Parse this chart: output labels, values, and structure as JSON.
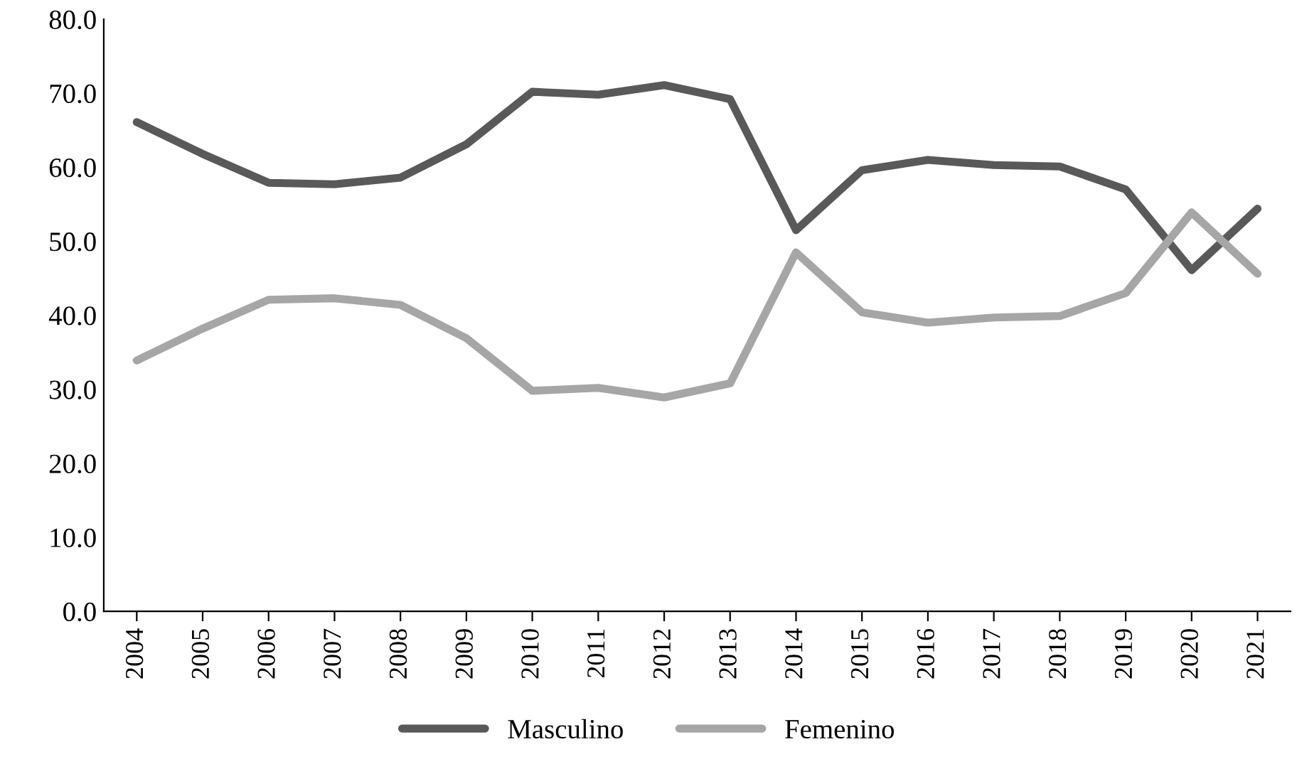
{
  "chart_data": {
    "type": "line",
    "categories": [
      "2004",
      "2005",
      "2006",
      "2007",
      "2008",
      "2009",
      "2010",
      "2011",
      "2012",
      "2013",
      "2014",
      "2015",
      "2016",
      "2017",
      "2018",
      "2019",
      "2020",
      "2021"
    ],
    "series": [
      {
        "name": "Masculino",
        "color": "#595959",
        "values": [
          66.1,
          61.8,
          57.9,
          57.7,
          58.6,
          63.1,
          70.2,
          69.8,
          71.1,
          69.2,
          51.5,
          59.6,
          61.0,
          60.3,
          60.1,
          57.0,
          46.1,
          54.4
        ]
      },
      {
        "name": "Femenino",
        "color": "#a6a6a6",
        "values": [
          33.9,
          38.2,
          42.1,
          42.3,
          41.4,
          36.9,
          29.8,
          30.2,
          28.9,
          30.8,
          48.5,
          40.4,
          39.0,
          39.7,
          39.9,
          43.0,
          53.9,
          45.6
        ]
      }
    ],
    "ylim": [
      0,
      80
    ],
    "yticks": [
      {
        "value": 0,
        "label": "0.0"
      },
      {
        "value": 10,
        "label": "10.0"
      },
      {
        "value": 20,
        "label": "20.0"
      },
      {
        "value": 30,
        "label": "30.0"
      },
      {
        "value": 40,
        "label": "40.0"
      },
      {
        "value": 50,
        "label": "50.0"
      },
      {
        "value": 60,
        "label": "60.0"
      },
      {
        "value": 70,
        "label": "70.0"
      },
      {
        "value": 80,
        "label": "80.0"
      }
    ],
    "grid": false,
    "legend": "bottom",
    "marker": "none",
    "line_style": "solid"
  }
}
